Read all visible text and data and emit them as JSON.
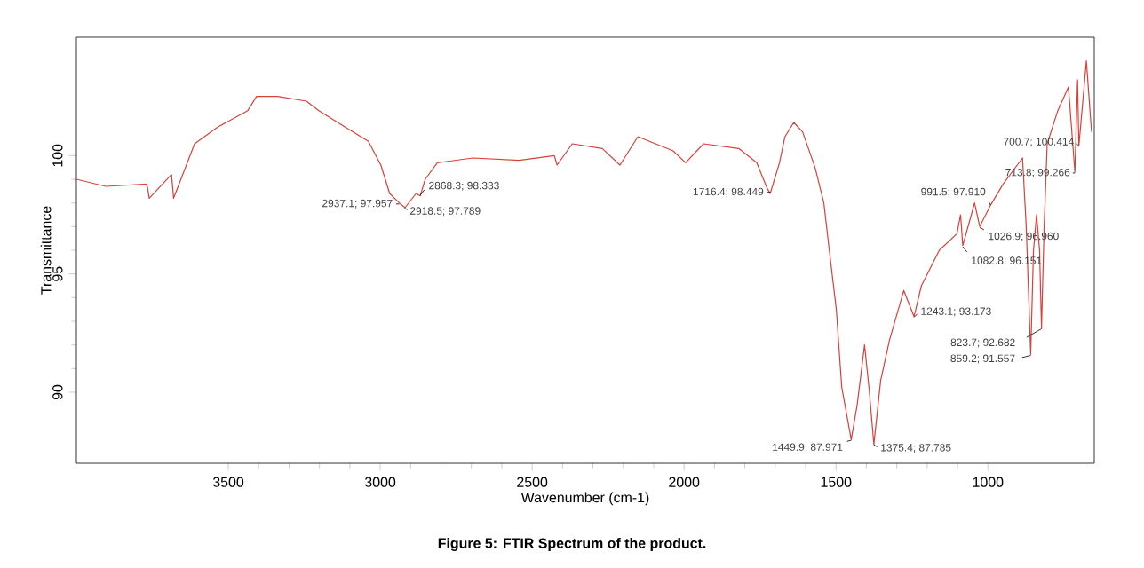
{
  "chart_data": {
    "type": "line",
    "xlabel": "Wavenumber (cm-1)",
    "ylabel": "Transmittance",
    "xlim": [
      4000,
      650
    ],
    "ylim": [
      87,
      105
    ],
    "xticks": [
      3500,
      3000,
      2500,
      2000,
      1500,
      1000
    ],
    "yticks": [
      90,
      95,
      100
    ],
    "grid": false,
    "marker": "none",
    "line_style": "solid",
    "series": [
      {
        "color": "#d9403a",
        "x": [
          4000,
          3903,
          3768,
          3760,
          3687,
          3680,
          3611,
          3535,
          3436,
          3407,
          3337,
          3243,
          3202,
          3127,
          3039,
          2998,
          2969,
          2937.1,
          2918.5,
          2882,
          2868.3,
          2852,
          2812,
          2695,
          2543,
          2427,
          2418,
          2368,
          2269,
          2211,
          2152,
          2036,
          1995,
          1936,
          1820,
          1761,
          1726,
          1716.4,
          1686,
          1668,
          1639,
          1610,
          1569,
          1540,
          1522,
          1499,
          1481,
          1449.9,
          1430,
          1406,
          1390,
          1375.4,
          1353,
          1324,
          1277,
          1243.1,
          1219,
          1160,
          1102,
          1090,
          1082.8,
          1061,
          1044,
          1026.9,
          991.5,
          950,
          886,
          874,
          859.2,
          850,
          840,
          830,
          823.7,
          815,
          805,
          770,
          735,
          713.8,
          705,
          700.7,
          676,
          659
        ],
        "values": [
          99.0,
          98.7,
          98.8,
          98.2,
          99.2,
          98.2,
          100.5,
          101.2,
          101.9,
          102.5,
          102.5,
          102.3,
          101.9,
          101.3,
          100.6,
          99.6,
          98.4,
          98.0,
          97.8,
          98.4,
          98.3,
          99.0,
          99.7,
          99.9,
          99.8,
          100.0,
          99.6,
          100.5,
          100.3,
          99.6,
          100.8,
          100.2,
          99.7,
          100.5,
          100.3,
          99.7,
          98.6,
          98.4,
          99.7,
          100.8,
          101.4,
          101.0,
          99.5,
          98.0,
          96.0,
          93.5,
          90.2,
          88.0,
          89.5,
          92.0,
          90.0,
          87.8,
          90.5,
          92.2,
          94.3,
          93.2,
          94.5,
          96.0,
          96.7,
          97.5,
          96.2,
          97.2,
          98.0,
          97.0,
          97.9,
          98.8,
          99.9,
          97.0,
          91.6,
          96.0,
          97.5,
          96.0,
          92.7,
          97.0,
          100.5,
          101.9,
          102.9,
          99.3,
          103.2,
          100.4,
          104.0,
          101.0
        ]
      }
    ],
    "annotations": [
      {
        "text": "2937.1; 97.957",
        "x": 2937.1,
        "y": 97.957
      },
      {
        "text": "2918.5; 97.789",
        "x": 2918.5,
        "y": 97.789
      },
      {
        "text": "2868.3; 98.333",
        "x": 2868.3,
        "y": 98.333
      },
      {
        "text": "1716.4; 98.449",
        "x": 1716.4,
        "y": 98.449
      },
      {
        "text": "1449.9; 87.971",
        "x": 1449.9,
        "y": 87.971
      },
      {
        "text": "1375.4; 87.785",
        "x": 1375.4,
        "y": 87.785
      },
      {
        "text": "1243.1; 93.173",
        "x": 1243.1,
        "y": 93.173
      },
      {
        "text": "1082.8; 96.151",
        "x": 1082.8,
        "y": 96.151
      },
      {
        "text": "991.5; 97.910",
        "x": 991.5,
        "y": 97.91
      },
      {
        "text": "1026.9; 96.960",
        "x": 1026.9,
        "y": 96.96
      },
      {
        "text": "823.7; 92.682",
        "x": 823.7,
        "y": 92.682
      },
      {
        "text": "859.2; 91.557",
        "x": 859.2,
        "y": 91.557
      },
      {
        "text": "713.8; 99.266",
        "x": 713.8,
        "y": 99.266
      },
      {
        "text": "700.7; 100.414",
        "x": 700.7,
        "y": 100.414
      },
      "Figure 5: FTIR Spectrum of the product."
    ]
  }
}
